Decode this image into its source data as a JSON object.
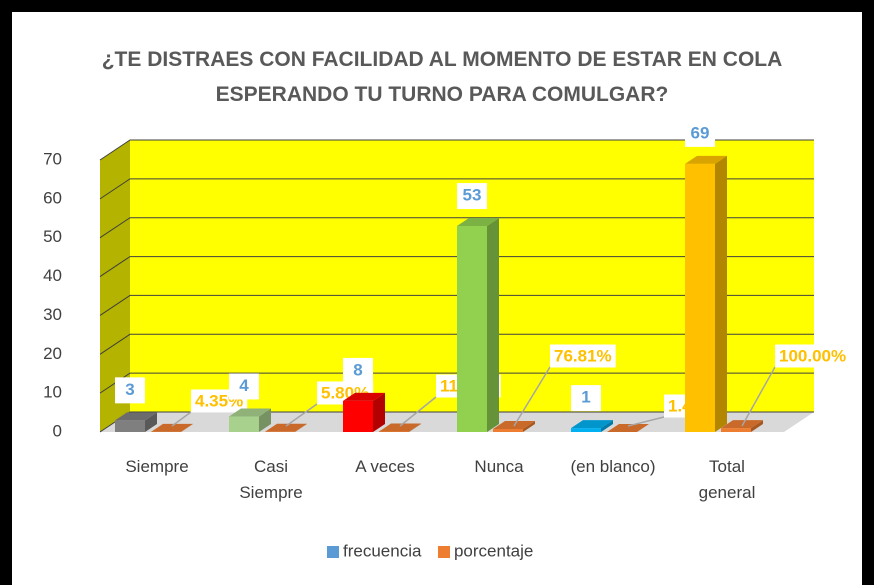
{
  "chart_data": {
    "type": "bar3d",
    "title": "¿TE DISTRAES CON FACILIDAD AL MOMENTO DE ESTAR EN COLA ESPERANDO TU TURNO PARA COMULGAR?",
    "categories": [
      "Siempre",
      "Casi Siempre",
      "A veces",
      "Nunca",
      "(en blanco)",
      "Total general"
    ],
    "series": [
      {
        "name": "frecuencia",
        "color": "#5b9bd5",
        "values": [
          3,
          4,
          8,
          53,
          1,
          69
        ],
        "point_colors": [
          "#7f7f7f",
          "#a9d18e",
          "#ff0000",
          "#92d050",
          "#00b0f0",
          "#ffc000"
        ]
      },
      {
        "name": "porcentaje",
        "color": "#ed7d31",
        "values": [
          0.0435,
          0.058,
          0.1159,
          0.7681,
          0.0145,
          1
        ],
        "value_labels": [
          "4.35%",
          "5.80%",
          "11.59%",
          "76.81%",
          "1.45%",
          "100.00%"
        ]
      }
    ],
    "ylim": [
      0,
      70
    ],
    "yticks": [
      0,
      10,
      20,
      30,
      40,
      50,
      60,
      70
    ],
    "grid": true,
    "wall_color": "#ffff00",
    "side_wall_color": "#b3b300",
    "legend": "bottom"
  }
}
